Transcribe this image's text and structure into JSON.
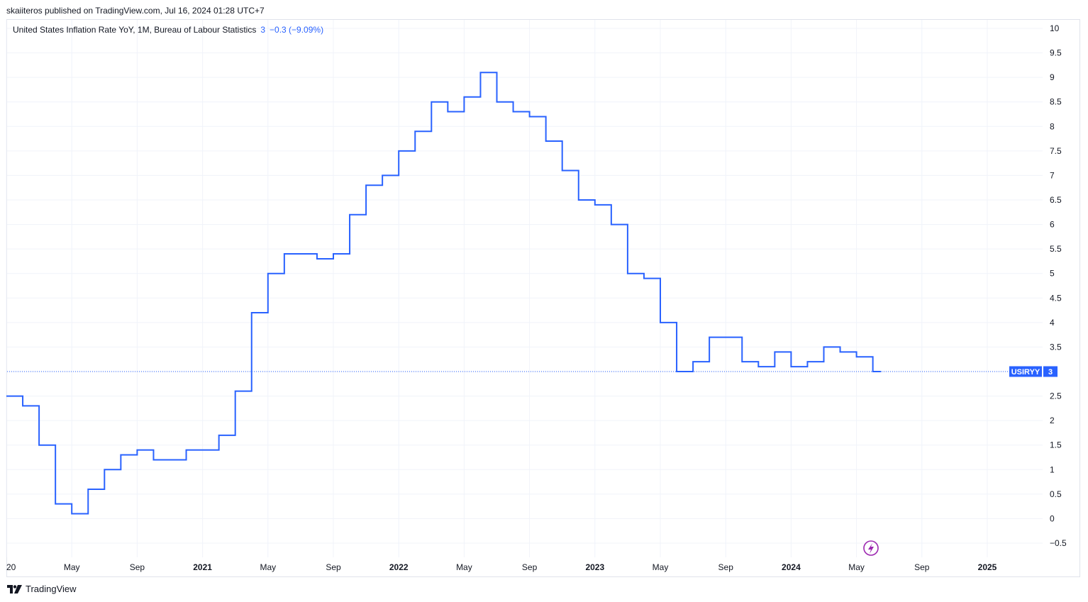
{
  "header": {
    "published": "skaiiteros published on TradingView.com, Jul 16, 2024 01:28 UTC+7"
  },
  "legend": {
    "name": "United States Inflation Rate YoY, 1M, Bureau of Labour Statistics",
    "value": "3",
    "change": "−0.3 (−9.09%)"
  },
  "badge": {
    "symbol": "USIRYY",
    "value": "3"
  },
  "footer": {
    "brand": "TradingView"
  },
  "colors": {
    "line": "#2962ff",
    "grid": "#f0f3fa",
    "text": "#131722",
    "badge_bg": "#2962ff"
  },
  "icons": {
    "flash": "lightning-icon",
    "logo": "tradingview-logo-icon"
  },
  "chart_data": {
    "type": "line",
    "step": true,
    "title": "",
    "xlabel": "",
    "ylabel": "",
    "ylim": [
      -0.5,
      10
    ],
    "xlim": [
      "2020-01",
      "2025-04"
    ],
    "y_ticks": [
      "10",
      "9.5",
      "9",
      "8.5",
      "8",
      "7.5",
      "7",
      "6.5",
      "6",
      "5.5",
      "5",
      "4.5",
      "4",
      "3.5",
      "3",
      "2.5",
      "2",
      "1.5",
      "1",
      "0.5",
      "0",
      "−0.5"
    ],
    "x_ticks": [
      {
        "date": "2020-01",
        "label": "20",
        "year": false
      },
      {
        "date": "2020-05",
        "label": "May",
        "year": false
      },
      {
        "date": "2020-09",
        "label": "Sep",
        "year": false
      },
      {
        "date": "2021-01",
        "label": "2021",
        "year": true
      },
      {
        "date": "2021-05",
        "label": "May",
        "year": false
      },
      {
        "date": "2021-09",
        "label": "Sep",
        "year": false
      },
      {
        "date": "2022-01",
        "label": "2022",
        "year": true
      },
      {
        "date": "2022-05",
        "label": "May",
        "year": false
      },
      {
        "date": "2022-09",
        "label": "Sep",
        "year": false
      },
      {
        "date": "2023-01",
        "label": "2023",
        "year": true
      },
      {
        "date": "2023-05",
        "label": "May",
        "year": false
      },
      {
        "date": "2023-09",
        "label": "Sep",
        "year": false
      },
      {
        "date": "2024-01",
        "label": "2024",
        "year": true
      },
      {
        "date": "2024-05",
        "label": "May",
        "year": false
      },
      {
        "date": "2024-09",
        "label": "Sep",
        "year": false
      },
      {
        "date": "2025-01",
        "label": "2025",
        "year": true
      }
    ],
    "x": [
      "2020-01",
      "2020-02",
      "2020-03",
      "2020-04",
      "2020-05",
      "2020-06",
      "2020-07",
      "2020-08",
      "2020-09",
      "2020-10",
      "2020-11",
      "2020-12",
      "2021-01",
      "2021-02",
      "2021-03",
      "2021-04",
      "2021-05",
      "2021-06",
      "2021-07",
      "2021-08",
      "2021-09",
      "2021-10",
      "2021-11",
      "2021-12",
      "2022-01",
      "2022-02",
      "2022-03",
      "2022-04",
      "2022-05",
      "2022-06",
      "2022-07",
      "2022-08",
      "2022-09",
      "2022-10",
      "2022-11",
      "2022-12",
      "2023-01",
      "2023-02",
      "2023-03",
      "2023-04",
      "2023-05",
      "2023-06",
      "2023-07",
      "2023-08",
      "2023-09",
      "2023-10",
      "2023-11",
      "2023-12",
      "2024-01",
      "2024-02",
      "2024-03",
      "2024-04",
      "2024-05",
      "2024-06"
    ],
    "series": [
      {
        "values": [
          2.5,
          2.3,
          1.5,
          0.3,
          0.1,
          0.6,
          1.0,
          1.3,
          1.4,
          1.2,
          1.2,
          1.4,
          1.4,
          1.7,
          2.6,
          4.2,
          5.0,
          5.4,
          5.4,
          5.3,
          5.4,
          6.2,
          6.8,
          7.0,
          7.5,
          7.9,
          8.5,
          8.3,
          8.6,
          9.1,
          8.5,
          8.3,
          8.2,
          7.7,
          7.1,
          6.5,
          6.4,
          6.0,
          5.0,
          4.9,
          4.0,
          3.0,
          3.2,
          3.7,
          3.7,
          3.2,
          3.1,
          3.4,
          3.1,
          3.2,
          3.5,
          3.4,
          3.3,
          3.0
        ]
      }
    ],
    "last_value": 3
  }
}
